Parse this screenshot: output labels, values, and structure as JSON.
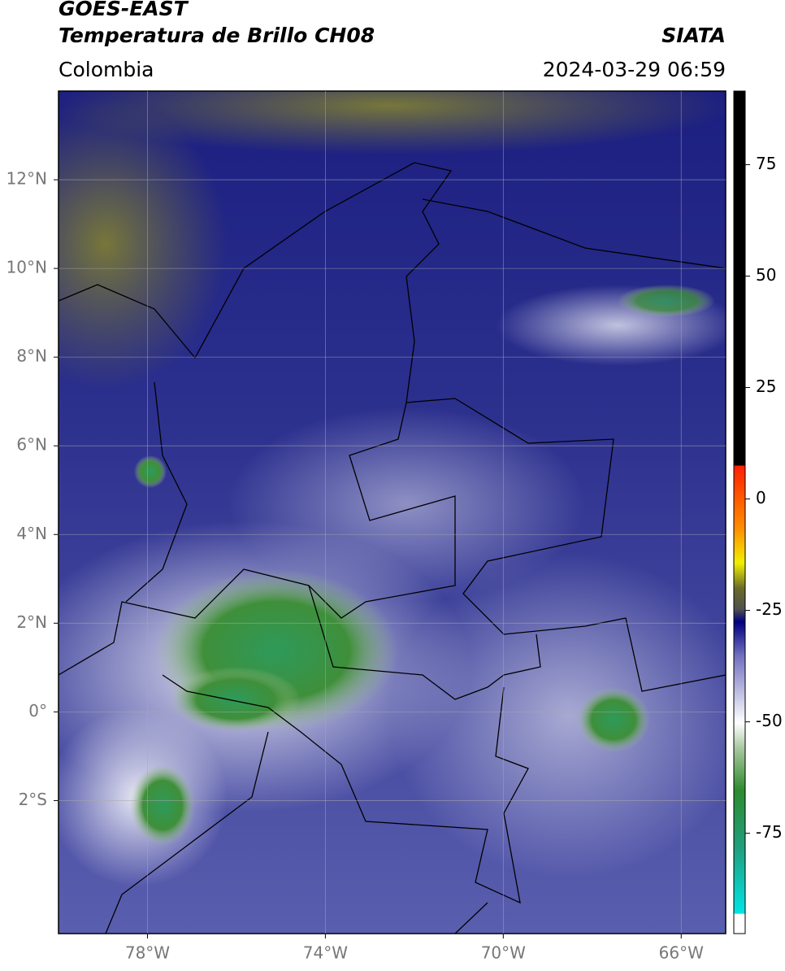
{
  "header": {
    "title_line1": "GOES-EAST",
    "title_line2": "Temperatura de Brillo CH08",
    "source": "SIATA",
    "region": "Colombia",
    "timestamp": "2024-03-29 06:59"
  },
  "map": {
    "xlim": [
      -80,
      -65
    ],
    "ylim": [
      -5,
      14
    ],
    "xticks": [
      {
        "value": -78,
        "label": "78°W"
      },
      {
        "value": -74,
        "label": "74°W"
      },
      {
        "value": -70,
        "label": "70°W"
      },
      {
        "value": -66,
        "label": "66°W"
      }
    ],
    "yticks": [
      {
        "value": 12,
        "label": "12°N"
      },
      {
        "value": 10,
        "label": "10°N"
      },
      {
        "value": 8,
        "label": "8°N"
      },
      {
        "value": 6,
        "label": "6°N"
      },
      {
        "value": 4,
        "label": "4°N"
      },
      {
        "value": 2,
        "label": "2°N"
      },
      {
        "value": 0,
        "label": "0°"
      },
      {
        "value": -2,
        "label": "2°S"
      }
    ],
    "grid": true
  },
  "colorbar": {
    "lim": [
      -97.5,
      91.5
    ],
    "ticks": [
      75,
      50,
      25,
      0,
      -25,
      -50,
      -75
    ]
  }
}
